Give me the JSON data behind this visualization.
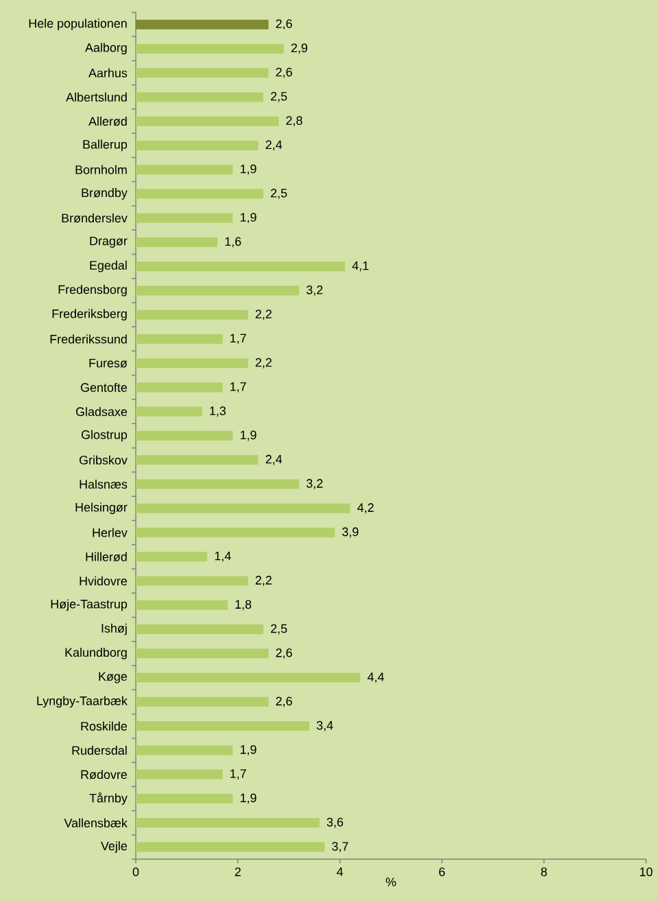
{
  "chart_data": {
    "type": "bar",
    "orientation": "horizontal",
    "xlabel": "%",
    "categories": [
      "Hele populationen",
      "Aalborg",
      "Aarhus",
      "Albertslund",
      "Allerød",
      "Ballerup",
      "Bornholm",
      "Brøndby",
      "Brønderslev",
      "Dragør",
      "Egedal",
      "Fredensborg",
      "Frederiksberg",
      "Frederikssund",
      "Furesø",
      "Gentofte",
      "Gladsaxe",
      "Glostrup",
      "Gribskov",
      "Halsnæs",
      "Helsingør",
      "Herlev",
      "Hillerød",
      "Hvidovre",
      "Høje-Taastrup",
      "Ishøj",
      "Kalundborg",
      "Køge",
      "Lyngby-Taarbæk",
      "Roskilde",
      "Rudersdal",
      "Rødovre",
      "Tårnby",
      "Vallensbæk",
      "Vejle"
    ],
    "values": [
      2.6,
      2.9,
      2.6,
      2.5,
      2.8,
      2.4,
      1.9,
      2.5,
      1.9,
      1.6,
      4.1,
      3.2,
      2.2,
      1.7,
      2.2,
      1.7,
      1.3,
      1.9,
      2.4,
      3.2,
      4.2,
      3.9,
      1.4,
      2.2,
      1.8,
      2.5,
      2.6,
      4.4,
      2.6,
      3.4,
      1.9,
      1.7,
      1.9,
      3.6,
      3.7
    ],
    "value_labels": [
      "2,6",
      "2,9",
      "2,6",
      "2,5",
      "2,8",
      "2,4",
      "1,9",
      "2,5",
      "1,9",
      "1,6",
      "4,1",
      "3,2",
      "2,2",
      "1,7",
      "2,2",
      "1,7",
      "1,3",
      "1,9",
      "2,4",
      "3,2",
      "4,2",
      "3,9",
      "1,4",
      "2,2",
      "1,8",
      "2,5",
      "2,6",
      "4,4",
      "2,6",
      "3,4",
      "1,9",
      "1,7",
      "1,9",
      "3,6",
      "3,7"
    ],
    "colors": [
      "#7f8a35",
      "#b3cf6a",
      "#b3cf6a",
      "#b3cf6a",
      "#b3cf6a",
      "#b3cf6a",
      "#b3cf6a",
      "#b3cf6a",
      "#b3cf6a",
      "#b3cf6a",
      "#b3cf6a",
      "#b3cf6a",
      "#b3cf6a",
      "#b3cf6a",
      "#b3cf6a",
      "#b3cf6a",
      "#b3cf6a",
      "#b3cf6a",
      "#b3cf6a",
      "#b3cf6a",
      "#b3cf6a",
      "#b3cf6a",
      "#b3cf6a",
      "#b3cf6a",
      "#b3cf6a",
      "#b3cf6a",
      "#b3cf6a",
      "#b3cf6a",
      "#b3cf6a",
      "#b3cf6a",
      "#b3cf6a",
      "#b3cf6a",
      "#b3cf6a",
      "#b3cf6a",
      "#b3cf6a"
    ],
    "xlim": [
      0,
      10
    ],
    "xticks": [
      0,
      2,
      4,
      6,
      8,
      10
    ]
  }
}
